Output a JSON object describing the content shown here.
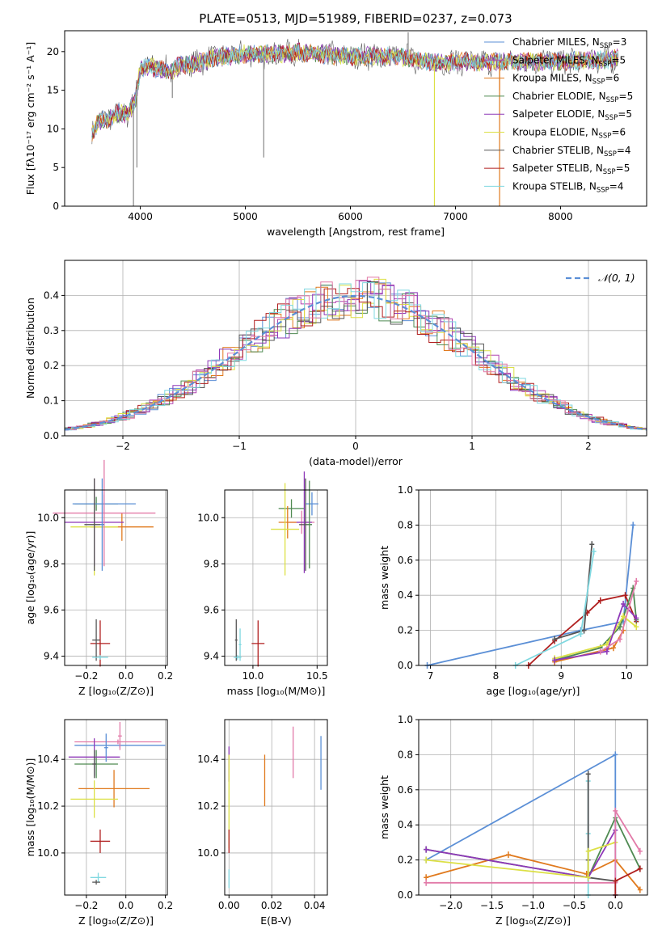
{
  "title": "PLATE=0513, MJD=51989, FIBERID=0237, z=0.073",
  "colors": {
    "chabrier_miles": "#5b8fd6",
    "salpeter_miles": "#b044b0",
    "kroupa_miles": "#e07a1e",
    "chabrier_elodie": "#4f8a52",
    "salpeter_elodie": "#8e38b8",
    "kroupa_elodie": "#dce045",
    "chabrier_stelib": "#555555",
    "salpeter_stelib": "#b01e1e",
    "kroupa_stelib": "#7fd8e0",
    "pink": "#e27aa8",
    "normal_curve": "#5b8fd6",
    "grid": "#b0b0b0"
  },
  "chart_data": [
    {
      "type": "line",
      "id": "spectrum",
      "title": "PLATE=0513, MJD=51989, FIBERID=0237, z=0.073",
      "xlabel": "wavelength [Angstrom, rest frame]",
      "ylabel": "Flux [fλ10⁻¹⁷ erg cm⁻² s⁻¹ A⁻¹]",
      "xlim": [
        3280,
        8820
      ],
      "ylim": [
        0,
        22.7
      ],
      "xticks": [
        4000,
        5000,
        6000,
        7000,
        8000
      ],
      "yticks": [
        0,
        5,
        10,
        15,
        20
      ],
      "grid": false,
      "legend_position": "top-right",
      "legend": [
        {
          "label": "Chabrier MILES, N",
          "sub": "SSP",
          "suffix": "=3",
          "color": "#5b8fd6"
        },
        {
          "label": "Salpeter MILES, N",
          "sub": "SSP",
          "suffix": "=5",
          "color": "#b044b0"
        },
        {
          "label": "Kroupa MILES, N",
          "sub": "SSP",
          "suffix": "=6",
          "color": "#e07a1e"
        },
        {
          "label": "Chabrier ELODIE, N",
          "sub": "SSP",
          "suffix": "=5",
          "color": "#4f8a52"
        },
        {
          "label": "Salpeter ELODIE, N",
          "sub": "SSP",
          "suffix": "=5",
          "color": "#8e38b8"
        },
        {
          "label": "Kroupa ELODIE, N",
          "sub": "SSP",
          "suffix": "=6",
          "color": "#dce045"
        },
        {
          "label": "Chabrier STELIB, N",
          "sub": "SSP",
          "suffix": "=4",
          "color": "#555555"
        },
        {
          "label": "Salpeter STELIB, N",
          "sub": "SSP",
          "suffix": "=5",
          "color": "#b01e1e"
        },
        {
          "label": "Kroupa STELIB, N",
          "sub": "SSP",
          "suffix": "=4",
          "color": "#7fd8e0"
        }
      ],
      "continuum": [
        [
          3540,
          9.5
        ],
        [
          3600,
          11.0
        ],
        [
          3700,
          11.3
        ],
        [
          3800,
          12.0
        ],
        [
          3880,
          12.0
        ],
        [
          3950,
          13.5
        ],
        [
          4000,
          17.8
        ],
        [
          4100,
          18.0
        ],
        [
          4200,
          17.8
        ],
        [
          4300,
          17.5
        ],
        [
          4400,
          18.4
        ],
        [
          4500,
          18.3
        ],
        [
          4700,
          19.2
        ],
        [
          5000,
          19.7
        ],
        [
          5200,
          19.6
        ],
        [
          5500,
          19.9
        ],
        [
          5800,
          19.6
        ],
        [
          6000,
          19.4
        ],
        [
          6200,
          19.4
        ],
        [
          6500,
          19.3
        ],
        [
          6800,
          18.5
        ],
        [
          7000,
          18.7
        ],
        [
          7200,
          18.6
        ],
        [
          7500,
          18.7
        ],
        [
          7800,
          18.7
        ],
        [
          8100,
          18.8
        ],
        [
          8300,
          18.9
        ],
        [
          8500,
          19.0
        ],
        [
          8550,
          19.2
        ]
      ],
      "spikes": [
        [
          3935,
          0
        ],
        [
          3968,
          5
        ],
        [
          5175,
          6.3
        ],
        [
          4305,
          14.0
        ],
        [
          6800,
          0
        ],
        [
          7420,
          0
        ],
        [
          7420,
          15
        ],
        [
          6550,
          22.5
        ]
      ]
    },
    {
      "type": "bar",
      "id": "residuals",
      "xlabel": "(data-model)/error",
      "ylabel": "Normed distribution",
      "xlim": [
        -2.5,
        2.5
      ],
      "ylim": [
        0,
        0.5
      ],
      "xticks": [
        -2,
        -1,
        0,
        1,
        2
      ],
      "yticks": [
        0.0,
        0.1,
        0.2,
        0.3,
        0.4
      ],
      "grid": true,
      "legend_position": "top-right",
      "legend": [
        {
          "label": "𝒩(0, 1)",
          "style": "dashed",
          "color": "#5b8fd6"
        }
      ],
      "bin_width": 0.1,
      "bin_start": -2.6,
      "reference": "normal(0,1)"
    },
    {
      "type": "scatter",
      "id": "age_vs_metallicity",
      "xlabel": "Z [log₁₀(Z/Z⊙)]",
      "ylabel": "age  [log₁₀(age/yr)]",
      "xlim": [
        -0.31,
        0.21
      ],
      "ylim": [
        9.36,
        10.12
      ],
      "xticks": [
        -0.2,
        0.0,
        0.2
      ],
      "yticks": [
        9.4,
        9.6,
        9.8,
        10.0
      ],
      "grid": true,
      "points": [
        {
          "x": -0.15,
          "xerr": 0.11,
          "y": 10.06,
          "yerr": 0.03,
          "color": "#4f8a52"
        },
        {
          "x": -0.11,
          "xerr": 0.16,
          "y": 10.06,
          "yerr": 0.04,
          "color": "#5b8fd6"
        },
        {
          "x": -0.02,
          "xerr": 0.16,
          "y": 9.96,
          "yerr": 0.06,
          "color": "#e07a1e"
        },
        {
          "x": -0.16,
          "xerr": 0.12,
          "y": 9.96,
          "yerr": 0.21,
          "color": "#dce045"
        },
        {
          "x": -0.16,
          "xerr": 0.15,
          "y": 9.98,
          "yerr": 0.19,
          "color": "#8e38b8"
        },
        {
          "x": -0.11,
          "xerr": 0.26,
          "y": 10.02,
          "yerr": 0.23,
          "color": "#e27aa8"
        },
        {
          "x": -0.16,
          "xerr": 0.05,
          "y": 9.97,
          "yerr": 0.2,
          "color": "#555555"
        },
        {
          "x": -0.12,
          "xerr": 0.01,
          "y": 9.97,
          "yerr": 0.2,
          "color": "#5b8fd6"
        },
        {
          "x": -0.13,
          "xerr": 0.05,
          "y": 9.455,
          "yerr": 0.1,
          "color": "#b01e1e"
        },
        {
          "x": -0.15,
          "xerr": 0.02,
          "y": 9.47,
          "yerr": 0.09,
          "color": "#555555"
        },
        {
          "x": -0.13,
          "xerr": 0.04,
          "y": 9.395,
          "yerr": 0.01,
          "color": "#7fd8e0"
        }
      ]
    },
    {
      "type": "scatter",
      "id": "age_vs_mass",
      "xlabel": "mass [log₁₀(M/M⊙)]",
      "ylabel": "",
      "xlim": [
        9.78,
        10.58
      ],
      "ylim": [
        9.36,
        10.12
      ],
      "xticks": [
        10.0,
        10.5
      ],
      "yticks": [
        9.4,
        9.6,
        9.8,
        10.0
      ],
      "grid": true,
      "points": [
        {
          "x": 10.3,
          "xerr": 0.1,
          "y": 10.04,
          "yerr": 0.04,
          "color": "#4f8a52"
        },
        {
          "x": 10.38,
          "xerr": 0.1,
          "y": 9.98,
          "yerr": 0.05,
          "color": "#e27aa8"
        },
        {
          "x": 10.46,
          "xerr": 0.05,
          "y": 10.06,
          "yerr": 0.05,
          "color": "#5b8fd6"
        },
        {
          "x": 10.27,
          "xerr": 0.07,
          "y": 9.98,
          "yerr": 0.07,
          "color": "#e07a1e"
        },
        {
          "x": 10.25,
          "xerr": 0.11,
          "y": 9.95,
          "yerr": 0.2,
          "color": "#dce045"
        },
        {
          "x": 10.4,
          "xerr": 0.06,
          "y": 9.98,
          "yerr": 0.22,
          "color": "#8e38b8"
        },
        {
          "x": 10.41,
          "xerr": 0.05,
          "y": 9.97,
          "yerr": 0.2,
          "color": "#555555"
        },
        {
          "x": 10.44,
          "xerr": 0.02,
          "y": 9.97,
          "yerr": 0.19,
          "color": "#4f8a52"
        },
        {
          "x": 10.04,
          "xerr": 0.05,
          "y": 9.455,
          "yerr": 0.1,
          "color": "#b01e1e"
        },
        {
          "x": 9.87,
          "xerr": 0.01,
          "y": 9.47,
          "yerr": 0.09,
          "color": "#555555"
        },
        {
          "x": 9.88,
          "xerr": 0.03,
          "y": 9.395,
          "yerr": 0.01,
          "color": "#7fd8e0"
        },
        {
          "x": 9.9,
          "xerr": 0.01,
          "y": 9.45,
          "yerr": 0.07,
          "color": "#7fd8e0"
        }
      ]
    },
    {
      "type": "line",
      "id": "mass_weight_vs_age",
      "xlabel": "age  [log₁₀(age/yr)]",
      "ylabel": "mass weight",
      "xlim": [
        6.82,
        10.32
      ],
      "ylim": [
        0,
        1.0
      ],
      "xticks": [
        7,
        8,
        9,
        10
      ],
      "yticks": [
        0.0,
        0.2,
        0.4,
        0.6,
        0.8,
        1.0
      ],
      "grid": true,
      "series": [
        {
          "color": "#5b8fd6",
          "x": [
            6.95,
            9.3,
            9.95,
            10.1
          ],
          "y": [
            0.0,
            0.2,
            0.25,
            0.8
          ]
        },
        {
          "color": "#b01e1e",
          "x": [
            8.5,
            8.9,
            9.4,
            9.6,
            9.98,
            10.15
          ],
          "y": [
            0.0,
            0.14,
            0.3,
            0.37,
            0.4,
            0.25
          ]
        },
        {
          "color": "#555555",
          "x": [
            8.9,
            9.35,
            9.47
          ],
          "y": [
            0.15,
            0.2,
            0.69
          ]
        },
        {
          "color": "#7fd8e0",
          "x": [
            8.3,
            9.3,
            9.5
          ],
          "y": [
            0.0,
            0.18,
            0.65
          ]
        },
        {
          "color": "#4f8a52",
          "x": [
            8.9,
            9.6,
            9.9,
            10.1,
            10.15
          ],
          "y": [
            0.03,
            0.1,
            0.22,
            0.44,
            0.26
          ]
        },
        {
          "color": "#dce045",
          "x": [
            8.9,
            9.7,
            9.95,
            10.15
          ],
          "y": [
            0.04,
            0.12,
            0.28,
            0.22
          ]
        },
        {
          "color": "#e07a1e",
          "x": [
            8.9,
            9.8,
            9.95
          ],
          "y": [
            0.02,
            0.1,
            0.2
          ]
        },
        {
          "color": "#8e38b8",
          "x": [
            8.9,
            9.7,
            9.95,
            10.15
          ],
          "y": [
            0.03,
            0.08,
            0.35,
            0.27
          ]
        },
        {
          "color": "#e27aa8",
          "x": [
            9.6,
            9.9,
            10.15
          ],
          "y": [
            0.08,
            0.15,
            0.48
          ]
        }
      ]
    },
    {
      "type": "scatter",
      "id": "mass_vs_metallicity",
      "xlabel": "Z [log₁₀(Z/Z⊙)]",
      "ylabel": "mass [log₁₀(M/M⊙)]",
      "xlim": [
        -0.31,
        0.21
      ],
      "ylim": [
        9.82,
        10.57
      ],
      "xticks": [
        -0.2,
        0.0,
        0.2
      ],
      "yticks": [
        10.0,
        10.2,
        10.4
      ],
      "grid": true,
      "points": [
        {
          "x": -0.04,
          "xerr": 0.22,
          "y": 10.475,
          "yerr": 0.01,
          "color": "#e27aa8"
        },
        {
          "x": -0.03,
          "xerr": 0.23,
          "y": 10.46,
          "yerr": 0.01,
          "color": "#5b8fd6"
        },
        {
          "x": -0.15,
          "xerr": 0.11,
          "y": 10.38,
          "yerr": 0.06,
          "color": "#4f8a52"
        },
        {
          "x": -0.16,
          "xerr": 0.13,
          "y": 10.41,
          "yerr": 0.08,
          "color": "#8e38b8"
        },
        {
          "x": -0.06,
          "xerr": 0.18,
          "y": 10.275,
          "yerr": 0.08,
          "color": "#e07a1e"
        },
        {
          "x": -0.16,
          "xerr": 0.12,
          "y": 10.23,
          "yerr": 0.08,
          "color": "#dce045"
        },
        {
          "x": -0.1,
          "xerr": 0.01,
          "y": 10.45,
          "yerr": 0.06,
          "color": "#5b8fd6"
        },
        {
          "x": -0.03,
          "xerr": 0.01,
          "y": 10.5,
          "yerr": 0.06,
          "color": "#e27aa8"
        },
        {
          "x": -0.16,
          "xerr": 0.01,
          "y": 10.38,
          "yerr": 0.06,
          "color": "#555555"
        },
        {
          "x": -0.13,
          "xerr": 0.05,
          "y": 10.05,
          "yerr": 0.05,
          "color": "#b01e1e"
        },
        {
          "x": -0.14,
          "xerr": 0.04,
          "y": 9.895,
          "yerr": 0.02,
          "color": "#7fd8e0"
        },
        {
          "x": -0.15,
          "xerr": 0.02,
          "y": 9.875,
          "yerr": 0.01,
          "color": "#555555"
        }
      ]
    },
    {
      "type": "scatter",
      "id": "mass_vs_ebv",
      "xlabel": "E(B-V)",
      "ylabel": "",
      "xlim": [
        -0.002,
        0.046
      ],
      "ylim": [
        9.82,
        10.57
      ],
      "xticks": [
        0.0,
        0.02,
        0.04
      ],
      "yticks": [
        10.0,
        10.2,
        10.4
      ],
      "grid": true,
      "points": [
        {
          "x": 0.043,
          "y": 10.385,
          "yerr": 0.115,
          "color": "#5b8fd6"
        },
        {
          "x": 0.03,
          "y": 10.43,
          "yerr": 0.11,
          "color": "#e27aa8"
        },
        {
          "x": 0.0167,
          "y": 10.31,
          "yerr": 0.11,
          "color": "#e07a1e"
        },
        {
          "x": 0.0,
          "y": 10.38,
          "yerr": 0.075,
          "color": "#8e38b8"
        },
        {
          "x": 0.0,
          "y": 10.22,
          "yerr": 0.2,
          "color": "#dce045"
        },
        {
          "x": 0.0,
          "y": 10.05,
          "yerr": 0.05,
          "color": "#b01e1e"
        },
        {
          "x": 0.0,
          "y": 9.89,
          "yerr": 0.04,
          "color": "#7fd8e0"
        }
      ]
    },
    {
      "type": "line",
      "id": "mass_weight_vs_metallicity",
      "xlabel": "Z [log₁₀(Z/Z⊙)]",
      "ylabel": "mass weight",
      "xlim": [
        -2.39,
        0.39
      ],
      "ylim": [
        0,
        1.0
      ],
      "xticks": [
        -2.0,
        -1.5,
        -1.0,
        -0.5,
        0.0
      ],
      "yticks": [
        0.0,
        0.2,
        0.4,
        0.6,
        0.8,
        1.0
      ],
      "grid": true,
      "series": [
        {
          "color": "#5b8fd6",
          "x": [
            -2.3,
            0.0,
            0.0
          ],
          "y": [
            0.2,
            0.8,
            0.0
          ]
        },
        {
          "color": "#7fd8e0",
          "x": [
            -0.33,
            -0.33,
            -0.33
          ],
          "y": [
            0.65,
            0.35,
            0.0
          ]
        },
        {
          "color": "#555555",
          "x": [
            -0.33,
            -0.33,
            -0.33,
            0.0
          ],
          "y": [
            0.69,
            0.2,
            0.1,
            0.08
          ]
        },
        {
          "color": "#e07a1e",
          "x": [
            -2.3,
            -1.3,
            -0.35,
            0.0,
            0.3
          ],
          "y": [
            0.1,
            0.23,
            0.12,
            0.2,
            0.03
          ]
        },
        {
          "color": "#4f8a52",
          "x": [
            -2.3,
            -0.33,
            0.0,
            0.3
          ],
          "y": [
            0.26,
            0.1,
            0.44,
            0.15
          ]
        },
        {
          "color": "#8e38b8",
          "x": [
            -2.3,
            -0.33,
            0.0
          ],
          "y": [
            0.26,
            0.1,
            0.37
          ]
        },
        {
          "color": "#dce045",
          "x": [
            -2.3,
            -0.33,
            -0.33,
            0.0
          ],
          "y": [
            0.2,
            0.1,
            0.25,
            0.3
          ]
        },
        {
          "color": "#e27aa8",
          "x": [
            -2.3,
            0.0,
            0.0,
            0.3
          ],
          "y": [
            0.07,
            0.07,
            0.48,
            0.25
          ]
        },
        {
          "color": "#b01e1e",
          "x": [
            0.3,
            0.0,
            0.0
          ],
          "y": [
            0.15,
            0.08,
            0.0
          ]
        }
      ]
    }
  ]
}
